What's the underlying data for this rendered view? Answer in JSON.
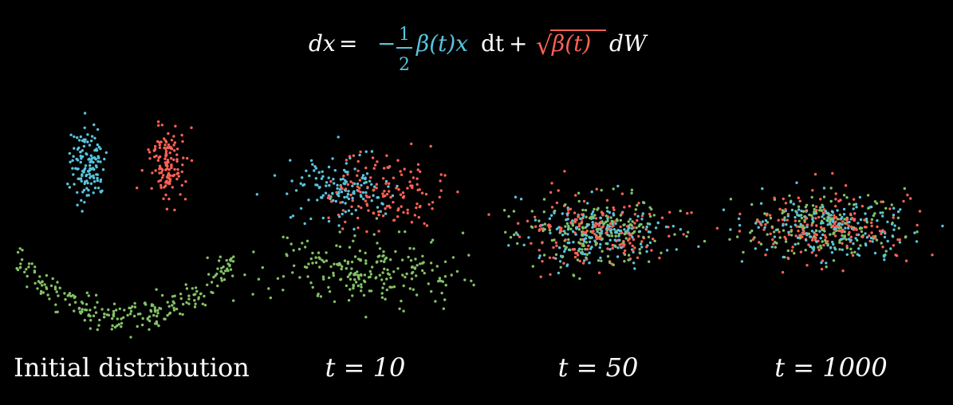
{
  "equation": {
    "lhs": "dx",
    "equals": "=",
    "minus": "−",
    "frac_num": "1",
    "frac_den": "2",
    "drift_term": "β(t)x",
    "dt": "dt",
    "plus": "+",
    "sqrt_symbol": "√",
    "diffusion_term": "β(t)",
    "dW": "dW"
  },
  "colors": {
    "background": "#000000",
    "text": "#ffffff",
    "blue": "#58c4dd",
    "red": "#fc6255",
    "green": "#83c167"
  },
  "panels": [
    {
      "label": "Initial distribution"
    },
    {
      "label": "t = 10"
    },
    {
      "label": "t = 50"
    },
    {
      "label": "t = 1000"
    }
  ]
}
